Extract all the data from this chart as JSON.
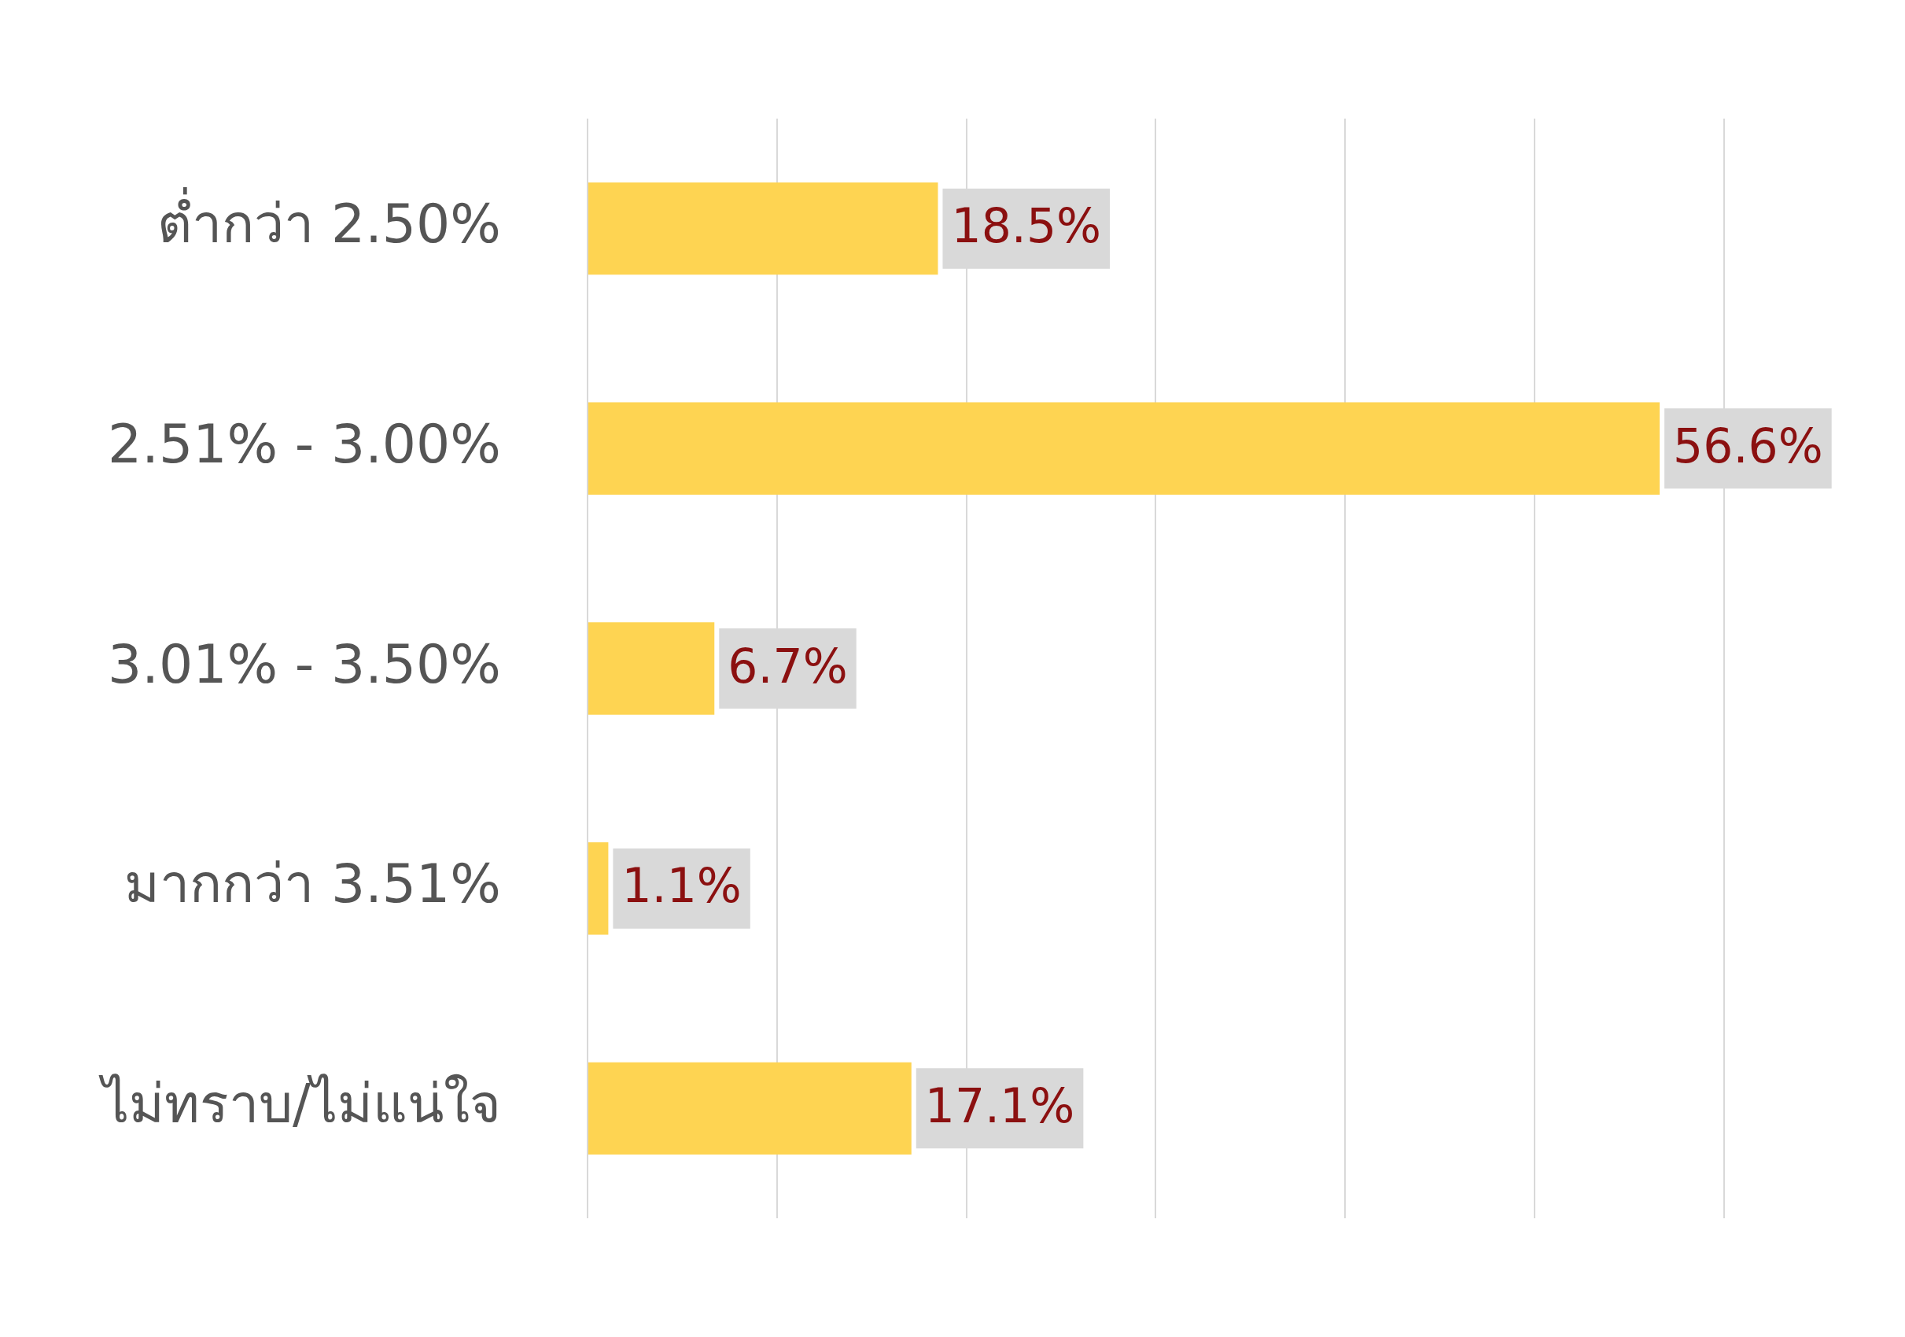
{
  "chart_data": {
    "type": "bar",
    "orientation": "horizontal",
    "categories": [
      "ต่ำกว่า 2.50%",
      "2.51% - 3.00%",
      "3.01% - 3.50%",
      "มากกว่า 3.51%",
      "ไม่ทราบ/ไม่แน่ใจ"
    ],
    "values": [
      18.5,
      56.6,
      6.7,
      1.1,
      17.1
    ],
    "color": "#fed452",
    "value_labels": [
      "18.5%",
      "56.6%",
      "6.7%",
      "1.1%",
      "17.1%"
    ],
    "grid": "x",
    "tick_labels": "y"
  }
}
